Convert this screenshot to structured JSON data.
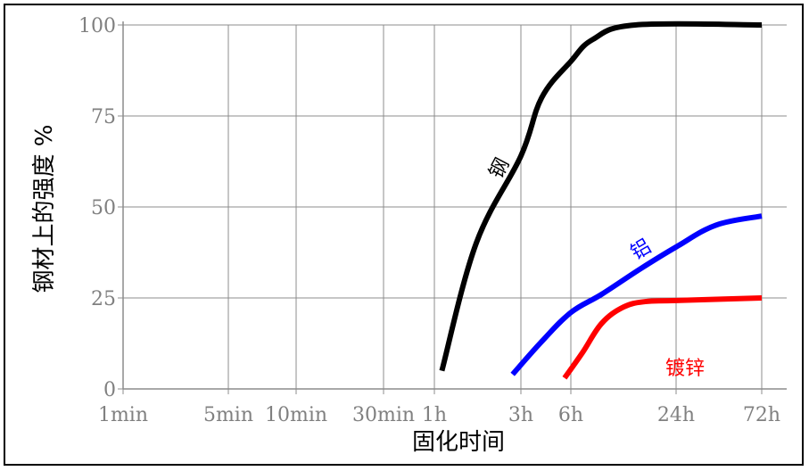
{
  "chart_data": {
    "type": "line",
    "xlabel": "固化时间",
    "ylabel": "钢材上的强度 %",
    "x_ticks": [
      "1min",
      "5min",
      "10min",
      "30min",
      "1h",
      "3h",
      "6h",
      "24h",
      "72h"
    ],
    "x_scale": "log (time)",
    "y_ticks": [
      0,
      25,
      50,
      75,
      100
    ],
    "ylim": [
      0,
      100
    ],
    "grid": true,
    "series": [
      {
        "name": "钢",
        "color": "#000000",
        "points": [
          {
            "x": "1.1h",
            "y": 5
          },
          {
            "x": "1.7h",
            "y": 40
          },
          {
            "x": "3h",
            "y": 64
          },
          {
            "x": "4h",
            "y": 80
          },
          {
            "x": "6h",
            "y": 90
          },
          {
            "x": "8h",
            "y": 96
          },
          {
            "x": "14h",
            "y": 100
          },
          {
            "x": "72h",
            "y": 100
          }
        ]
      },
      {
        "name": "铝",
        "color": "#0000ff",
        "points": [
          {
            "x": "2.7h",
            "y": 4
          },
          {
            "x": "4h",
            "y": 13
          },
          {
            "x": "6h",
            "y": 21
          },
          {
            "x": "9h",
            "y": 26
          },
          {
            "x": "15h",
            "y": 33
          },
          {
            "x": "24h",
            "y": 39
          },
          {
            "x": "40h",
            "y": 45
          },
          {
            "x": "72h",
            "y": 47.5
          }
        ]
      },
      {
        "name": "镀锌",
        "color": "#ff0000",
        "points": [
          {
            "x": "5.5h",
            "y": 3
          },
          {
            "x": "7h",
            "y": 10
          },
          {
            "x": "9h",
            "y": 18
          },
          {
            "x": "12h",
            "y": 22.5
          },
          {
            "x": "16h",
            "y": 24
          },
          {
            "x": "24h",
            "y": 24.3
          },
          {
            "x": "72h",
            "y": 25
          }
        ]
      }
    ]
  }
}
